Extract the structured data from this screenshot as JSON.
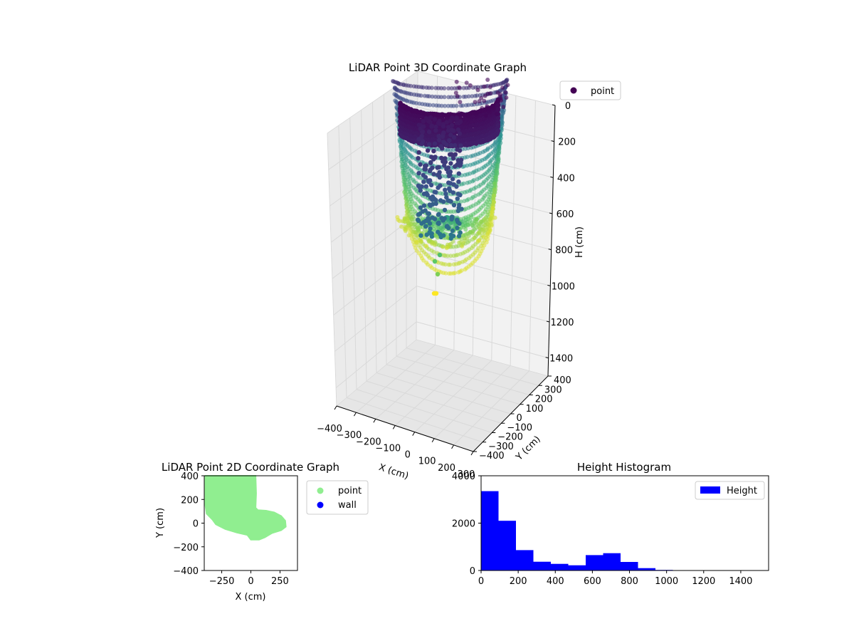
{
  "colors": {
    "point_2d": "#90ee90",
    "wall_2d": "#0000ff",
    "histogram": "#0000ff",
    "pane": "#f2f2f2",
    "colormap": "viridis"
  },
  "chart_data": [
    {
      "type": "scatter",
      "projection": "3d",
      "title": "LiDAR Point 3D Coordinate Graph",
      "xlabel": "X (cm)",
      "ylabel": "Y (cm)",
      "zlabel": "H (cm)",
      "xlim": [
        -400,
        300
      ],
      "ylim": [
        -400,
        400
      ],
      "zlim": [
        0,
        1500
      ],
      "z_inverted": true,
      "x_ticks": [
        "−400",
        "−300",
        "−200",
        "−100",
        "0",
        "100",
        "200",
        "300"
      ],
      "y_ticks": [
        "−400",
        "−300",
        "−200",
        "−100",
        "0",
        "100",
        "200",
        "300",
        "400"
      ],
      "z_ticks": [
        "0",
        "200",
        "400",
        "600",
        "800",
        "1000",
        "1200",
        "1400"
      ],
      "legend": [
        "point"
      ],
      "legend_position": "upper right (outside)",
      "color_by": "height",
      "grid": true
    },
    {
      "type": "scatter",
      "title": "LiDAR Point 2D Coordinate Graph",
      "xlabel": "X (cm)",
      "ylabel": "Y (cm)",
      "xlim": [
        -400,
        400
      ],
      "ylim": [
        -400,
        400
      ],
      "x_ticks": [
        "−250",
        "0",
        "250"
      ],
      "y_ticks": [
        "400",
        "200",
        "0",
        "−200",
        "−400"
      ],
      "series": [
        {
          "name": "point",
          "region_polygon": [
            [
              -390,
              400
            ],
            [
              40,
              400
            ],
            [
              45,
              250
            ],
            [
              40,
              130
            ],
            [
              60,
              110
            ],
            [
              130,
              105
            ],
            [
              200,
              90
            ],
            [
              260,
              60
            ],
            [
              295,
              20
            ],
            [
              300,
              -30
            ],
            [
              260,
              -60
            ],
            [
              180,
              -85
            ],
            [
              120,
              -120
            ],
            [
              70,
              -140
            ],
            [
              0,
              -140
            ],
            [
              -30,
              -100
            ],
            [
              -120,
              -80
            ],
            [
              -220,
              -50
            ],
            [
              -300,
              -10
            ],
            [
              -330,
              30
            ],
            [
              -380,
              80
            ],
            [
              -390,
              150
            ]
          ]
        },
        {
          "name": "wall",
          "region_polygon": []
        }
      ],
      "legend_position": "upper right (outside)"
    },
    {
      "type": "bar",
      "title": "Height Histogram",
      "xlabel": "",
      "ylabel": "",
      "xlim": [
        0,
        1550
      ],
      "ylim": [
        0,
        4000
      ],
      "x_ticks": [
        "0",
        "200",
        "400",
        "600",
        "800",
        "1000",
        "1200",
        "1400"
      ],
      "y_ticks": [
        "0",
        "2000",
        "4000"
      ],
      "bin_edges": [
        0,
        94,
        188,
        282,
        376,
        470,
        564,
        658,
        752,
        846,
        940,
        1034,
        1128,
        1222,
        1316,
        1410,
        1504
      ],
      "series": [
        {
          "name": "Height",
          "values": [
            3350,
            2100,
            860,
            370,
            280,
            220,
            650,
            730,
            360,
            100,
            25,
            10,
            8,
            6,
            5,
            4
          ]
        }
      ],
      "legend_position": "upper right"
    }
  ]
}
